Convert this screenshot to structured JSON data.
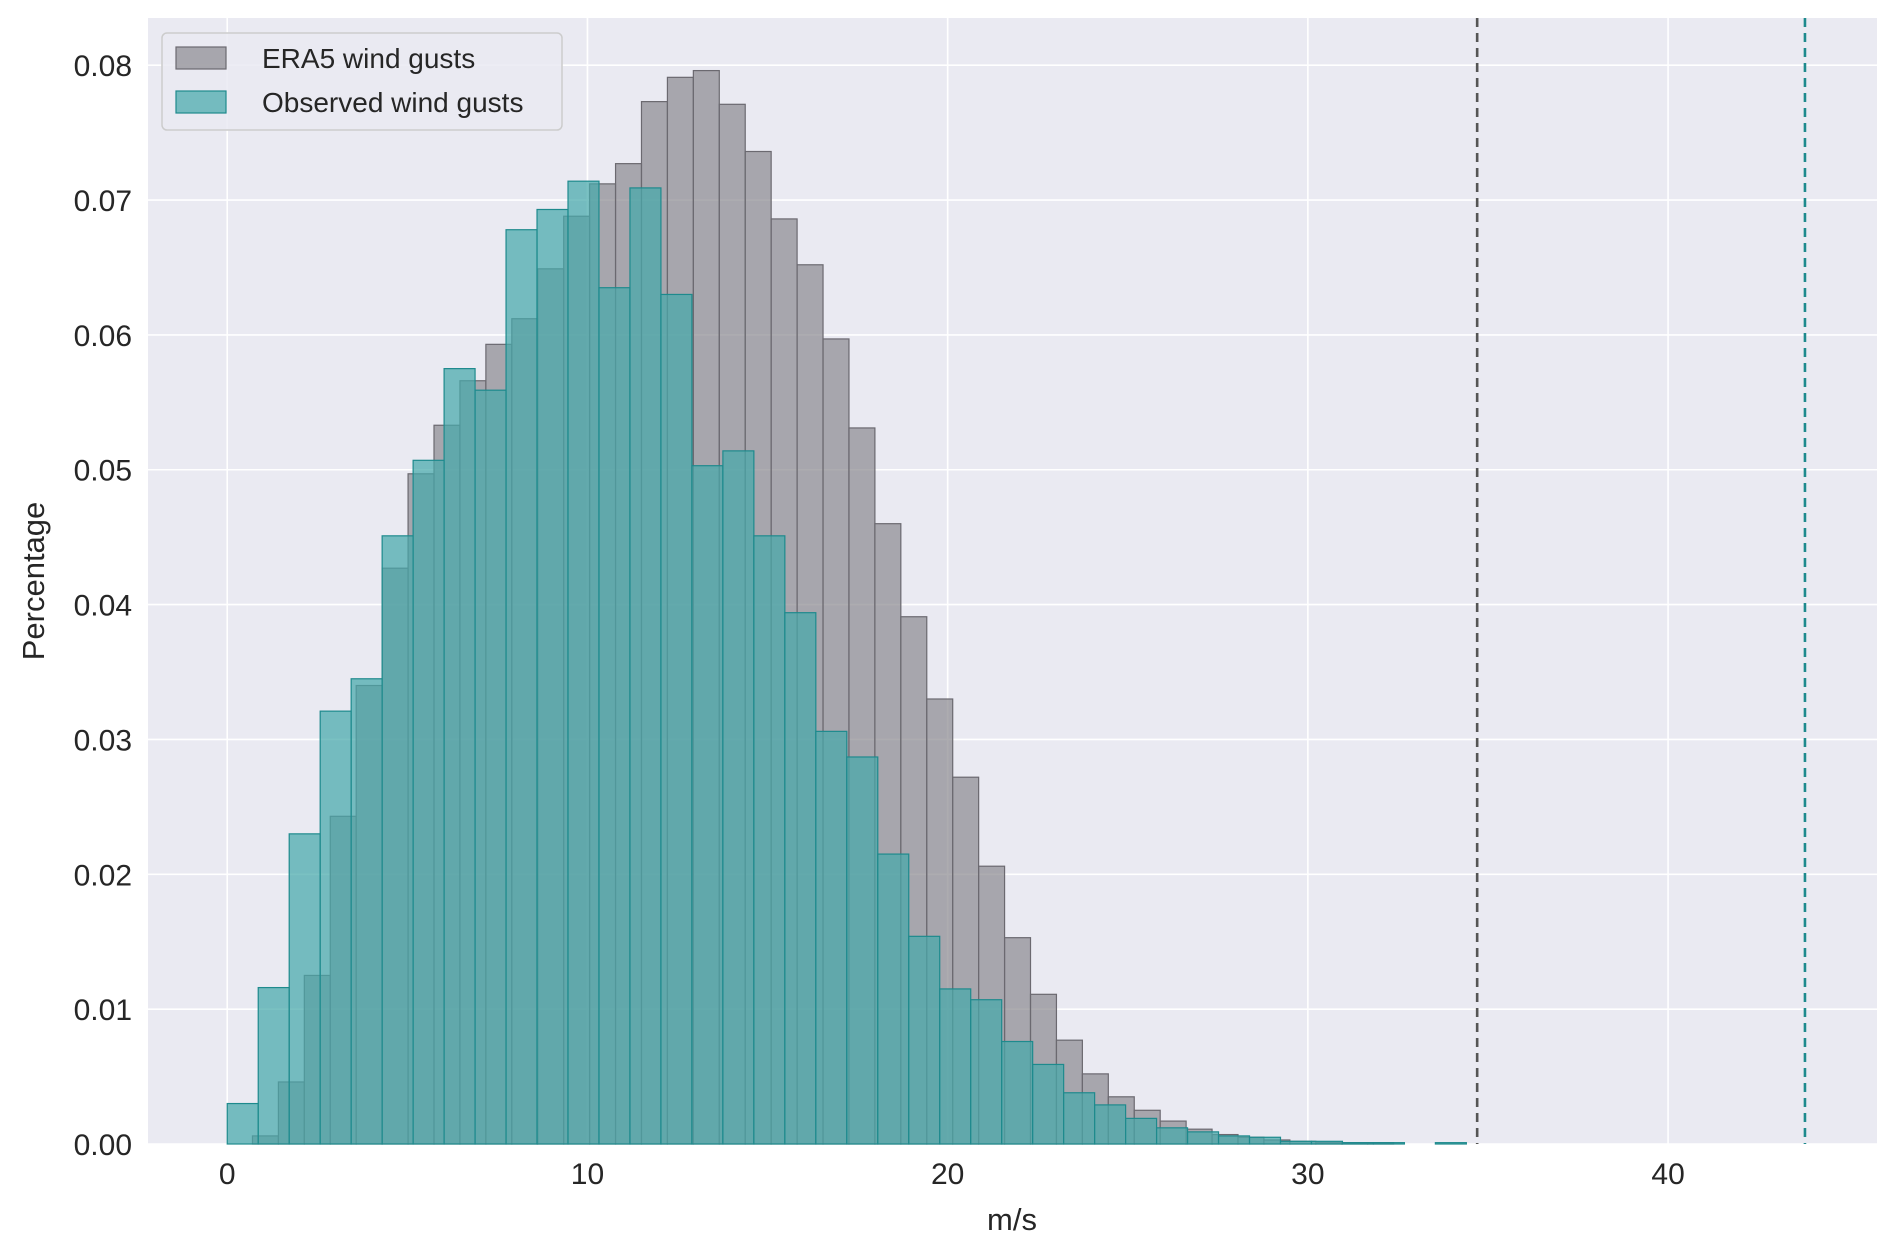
{
  "chart_data": {
    "type": "bar",
    "subtype": "overlaid-histogram",
    "xlabel": "m/s",
    "ylabel": "Percentage",
    "xlim": [
      -2.2,
      45.8
    ],
    "ylim": [
      0,
      0.0835
    ],
    "xticks": [
      0,
      10,
      20,
      30,
      40
    ],
    "xtick_labels": [
      "0",
      "10",
      "20",
      "30",
      "40"
    ],
    "yticks": [
      0,
      0.01,
      0.02,
      0.03,
      0.04,
      0.05,
      0.06,
      0.07,
      0.08
    ],
    "ytick_labels": [
      "0.00",
      "0.01",
      "0.02",
      "0.03",
      "0.04",
      "0.05",
      "0.06",
      "0.07",
      "0.08"
    ],
    "grid": true,
    "legend_position": "top-left",
    "background_color": "#EAEAF2",
    "series": [
      {
        "name": "ERA5 wind gusts",
        "fill_color": "#8E8C92",
        "edge_color": "#6B6970",
        "bin_start": 0.7,
        "bin_width": 0.72,
        "values": [
          0.0006,
          0.0046,
          0.0125,
          0.0243,
          0.034,
          0.0427,
          0.0497,
          0.0533,
          0.0566,
          0.0593,
          0.0612,
          0.0649,
          0.0688,
          0.0712,
          0.0727,
          0.0773,
          0.0791,
          0.0796,
          0.0771,
          0.0736,
          0.0686,
          0.0652,
          0.0597,
          0.0531,
          0.046,
          0.0391,
          0.033,
          0.0272,
          0.0206,
          0.0153,
          0.0111,
          0.0077,
          0.0052,
          0.0035,
          0.0025,
          0.0017,
          0.0011,
          0.0007,
          0.0005,
          0.0003,
          0.0002,
          0.0001,
          0.0001,
          0.0001,
          0.0,
          0.0,
          0.0,
          0.0,
          0.0,
          0.0,
          0.0,
          0.0,
          0.0,
          0.0,
          0.0,
          0.0,
          0.0,
          0.0
        ]
      },
      {
        "name": "Observed wind gusts",
        "fill_color": "#46A9AB",
        "edge_color": "#1E8A8D",
        "bin_start": 0.0,
        "bin_width": 0.86,
        "values": [
          0.003,
          0.0116,
          0.023,
          0.0321,
          0.0345,
          0.0451,
          0.0507,
          0.0575,
          0.0559,
          0.0678,
          0.0693,
          0.0714,
          0.0635,
          0.0709,
          0.063,
          0.0503,
          0.0514,
          0.0451,
          0.0394,
          0.0306,
          0.0287,
          0.0215,
          0.0154,
          0.0115,
          0.0107,
          0.0076,
          0.0059,
          0.0038,
          0.0029,
          0.0019,
          0.0012,
          0.0009,
          0.0006,
          0.0005,
          0.0002,
          0.0002,
          0.0001,
          0.0001,
          0.0,
          0.0001,
          0.0,
          0.0,
          0.0,
          0.0,
          0.0,
          0.0,
          0.0,
          0.0,
          0.0,
          0.0,
          0.0
        ]
      }
    ],
    "vlines": [
      {
        "series": "ERA5 wind gusts",
        "x": 34.7,
        "color": "#555555",
        "style": "dashed"
      },
      {
        "series": "Observed wind gusts",
        "x": 43.8,
        "color": "#1E8A8D",
        "style": "dashed"
      }
    ]
  }
}
